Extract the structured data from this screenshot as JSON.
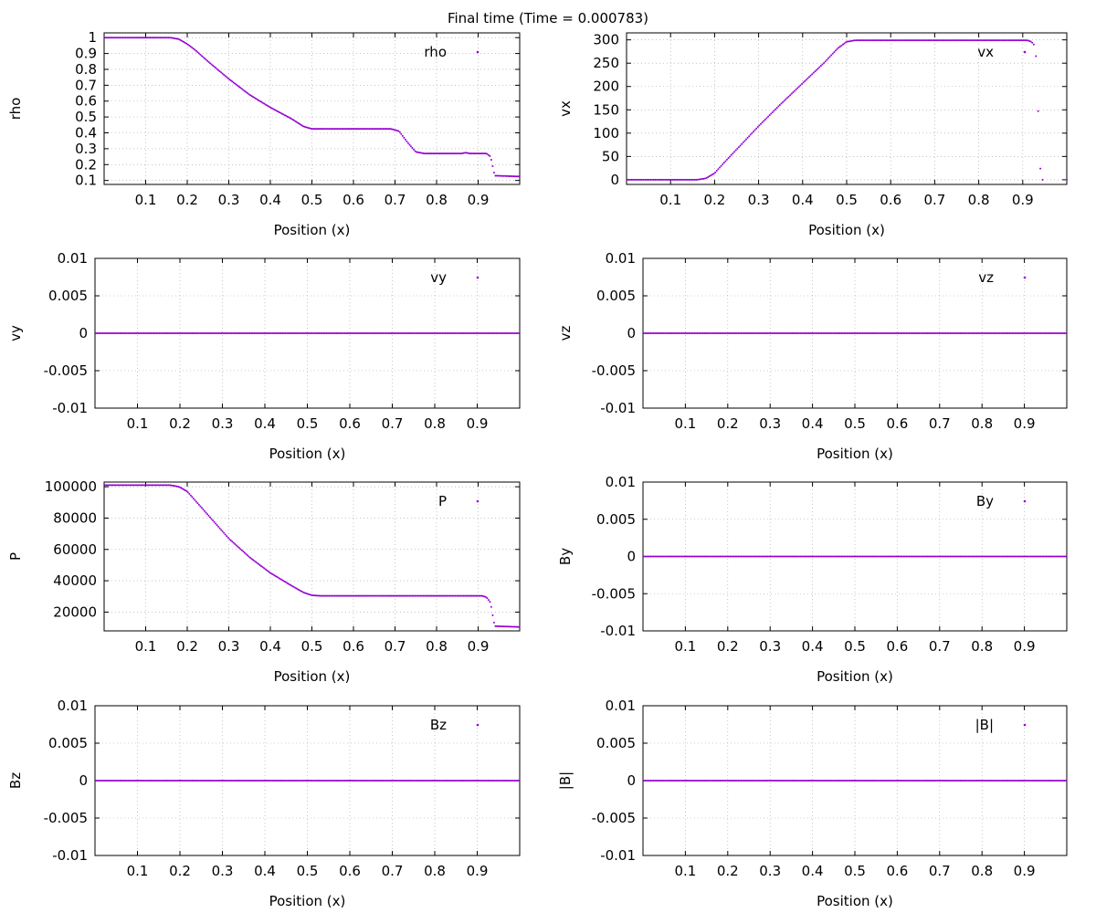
{
  "figure": {
    "title": "Final time (Time = 0.000783)",
    "marker_color": "#9400d3",
    "grid_color": "#a0a0a0",
    "axis_color": "#000000"
  },
  "chart_data": [
    {
      "type": "scatter",
      "title": "",
      "xlabel": "Position (x)",
      "ylabel": "rho",
      "legend": "rho",
      "legend_placement": "top-right",
      "grid": true,
      "xlim": [
        0,
        1
      ],
      "ylim": [
        0.075,
        1.03
      ],
      "xticks": [
        0.1,
        0.2,
        0.3,
        0.4,
        0.5,
        0.6,
        0.7,
        0.8,
        0.9
      ],
      "xtick_labels": [
        "0.1",
        "0.2",
        "0.3",
        "0.4",
        "0.5",
        "0.6",
        "0.7",
        "0.8",
        "0.9"
      ],
      "yticks": [
        0.1,
        0.2,
        0.3,
        0.4,
        0.5,
        0.6,
        0.7,
        0.8,
        0.9,
        1
      ],
      "ytick_labels": [
        "0.1",
        "0.2",
        "0.3",
        "0.4",
        "0.5",
        "0.6",
        "0.7",
        "0.8",
        "0.9",
        "1"
      ],
      "series": [
        {
          "name": "rho",
          "profile": [
            [
              0,
              1
            ],
            [
              0.16,
              1
            ],
            [
              0.18,
              0.99
            ],
            [
              0.2,
              0.96
            ],
            [
              0.22,
              0.92
            ],
            [
              0.25,
              0.85
            ],
            [
              0.3,
              0.74
            ],
            [
              0.35,
              0.64
            ],
            [
              0.4,
              0.56
            ],
            [
              0.45,
              0.49
            ],
            [
              0.48,
              0.44
            ],
            [
              0.5,
              0.425
            ],
            [
              0.55,
              0.425
            ],
            [
              0.69,
              0.425
            ],
            [
              0.71,
              0.41
            ],
            [
              0.73,
              0.34
            ],
            [
              0.75,
              0.28
            ],
            [
              0.77,
              0.27
            ],
            [
              0.86,
              0.27
            ],
            [
              0.87,
              0.275
            ],
            [
              0.88,
              0.27
            ],
            [
              0.92,
              0.27
            ],
            [
              0.93,
              0.25
            ],
            [
              0.935,
              0.19
            ],
            [
              0.94,
              0.13
            ],
            [
              1,
              0.125
            ]
          ]
        }
      ]
    },
    {
      "type": "scatter",
      "title": "",
      "xlabel": "Position (x)",
      "ylabel": "vx",
      "legend": "vx",
      "legend_placement": "top-right",
      "grid": true,
      "xlim": [
        0,
        1
      ],
      "ylim": [
        -10,
        315
      ],
      "xticks": [
        0.1,
        0.2,
        0.3,
        0.4,
        0.5,
        0.6,
        0.7,
        0.8,
        0.9
      ],
      "xtick_labels": [
        "0.1",
        "0.2",
        "0.3",
        "0.4",
        "0.5",
        "0.6",
        "0.7",
        "0.8",
        "0.9"
      ],
      "yticks": [
        0,
        50,
        100,
        150,
        200,
        250,
        300
      ],
      "ytick_labels": [
        "0",
        "50",
        "100",
        "150",
        "200",
        "250",
        "300"
      ],
      "series": [
        {
          "name": "vx",
          "profile": [
            [
              0,
              0
            ],
            [
              0.16,
              0
            ],
            [
              0.18,
              3
            ],
            [
              0.2,
              14
            ],
            [
              0.22,
              35
            ],
            [
              0.25,
              65
            ],
            [
              0.3,
              115
            ],
            [
              0.35,
              162
            ],
            [
              0.4,
              207
            ],
            [
              0.45,
              252
            ],
            [
              0.48,
              282
            ],
            [
              0.5,
              296
            ],
            [
              0.52,
              299
            ],
            [
              0.91,
              299
            ],
            [
              0.92,
              296
            ],
            [
              0.925,
              290
            ]
          ],
          "extra_points": [
            [
              0.93,
              265
            ],
            [
              0.935,
              147
            ],
            [
              0.94,
              24
            ],
            [
              0.945,
              0
            ],
            [
              1,
              0
            ]
          ]
        }
      ]
    },
    {
      "type": "scatter",
      "title": "",
      "xlabel": "Position (x)",
      "ylabel": "vy",
      "legend": "vy",
      "legend_placement": "top-right",
      "grid": true,
      "xlim": [
        0,
        1
      ],
      "ylim": [
        -0.01,
        0.01
      ],
      "xticks": [
        0.1,
        0.2,
        0.3,
        0.4,
        0.5,
        0.6,
        0.7,
        0.8,
        0.9
      ],
      "xtick_labels": [
        "0.1",
        "0.2",
        "0.3",
        "0.4",
        "0.5",
        "0.6",
        "0.7",
        "0.8",
        "0.9"
      ],
      "yticks": [
        -0.01,
        -0.005,
        0,
        0.005,
        0.01
      ],
      "ytick_labels": [
        "-0.01",
        "-0.005",
        "0",
        "0.005",
        "0.01"
      ],
      "series": [
        {
          "name": "vy",
          "profile": [
            [
              0,
              0
            ],
            [
              1,
              0
            ]
          ]
        }
      ]
    },
    {
      "type": "scatter",
      "title": "",
      "xlabel": "Position (x)",
      "ylabel": "vz",
      "legend": "vz",
      "legend_placement": "top-right",
      "grid": true,
      "xlim": [
        0,
        1
      ],
      "ylim": [
        -0.01,
        0.01
      ],
      "xticks": [
        0.1,
        0.2,
        0.3,
        0.4,
        0.5,
        0.6,
        0.7,
        0.8,
        0.9
      ],
      "xtick_labels": [
        "0.1",
        "0.2",
        "0.3",
        "0.4",
        "0.5",
        "0.6",
        "0.7",
        "0.8",
        "0.9"
      ],
      "yticks": [
        -0.01,
        -0.005,
        0,
        0.005,
        0.01
      ],
      "ytick_labels": [
        "-0.01",
        "-0.005",
        "0",
        "0.005",
        "0.01"
      ],
      "series": [
        {
          "name": "vz",
          "profile": [
            [
              0,
              0
            ],
            [
              1,
              0
            ]
          ]
        }
      ]
    },
    {
      "type": "scatter",
      "title": "",
      "xlabel": "Position (x)",
      "ylabel": "P",
      "legend": "P",
      "legend_placement": "top-right",
      "grid": true,
      "xlim": [
        0,
        1
      ],
      "ylim": [
        8000,
        103000
      ],
      "xticks": [
        0.1,
        0.2,
        0.3,
        0.4,
        0.5,
        0.6,
        0.7,
        0.8,
        0.9
      ],
      "xtick_labels": [
        "0.1",
        "0.2",
        "0.3",
        "0.4",
        "0.5",
        "0.6",
        "0.7",
        "0.8",
        "0.9"
      ],
      "yticks": [
        20000,
        40000,
        60000,
        80000,
        100000
      ],
      "ytick_labels": [
        "20000",
        "40000",
        "60000",
        "80000",
        "100000"
      ],
      "series": [
        {
          "name": "P",
          "profile": [
            [
              0,
              101000
            ],
            [
              0.16,
              101000
            ],
            [
              0.18,
              100000
            ],
            [
              0.2,
              97000
            ],
            [
              0.22,
              91000
            ],
            [
              0.25,
              82000
            ],
            [
              0.3,
              67000
            ],
            [
              0.35,
              55000
            ],
            [
              0.4,
              45000
            ],
            [
              0.45,
              37000
            ],
            [
              0.48,
              32500
            ],
            [
              0.5,
              30700
            ],
            [
              0.52,
              30400
            ],
            [
              0.91,
              30400
            ],
            [
              0.92,
              29500
            ],
            [
              0.93,
              26000
            ],
            [
              0.935,
              18000
            ],
            [
              0.94,
              11000
            ],
            [
              1,
              10500
            ]
          ]
        }
      ]
    },
    {
      "type": "scatter",
      "title": "",
      "xlabel": "Position (x)",
      "ylabel": "By",
      "legend": "By",
      "legend_placement": "top-right",
      "grid": true,
      "xlim": [
        0,
        1
      ],
      "ylim": [
        -0.01,
        0.01
      ],
      "xticks": [
        0.1,
        0.2,
        0.3,
        0.4,
        0.5,
        0.6,
        0.7,
        0.8,
        0.9
      ],
      "xtick_labels": [
        "0.1",
        "0.2",
        "0.3",
        "0.4",
        "0.5",
        "0.6",
        "0.7",
        "0.8",
        "0.9"
      ],
      "yticks": [
        -0.01,
        -0.005,
        0,
        0.005,
        0.01
      ],
      "ytick_labels": [
        "-0.01",
        "-0.005",
        "0",
        "0.005",
        "0.01"
      ],
      "series": [
        {
          "name": "By",
          "profile": [
            [
              0,
              0
            ],
            [
              1,
              0
            ]
          ]
        }
      ]
    },
    {
      "type": "scatter",
      "title": "",
      "xlabel": "Position (x)",
      "ylabel": "Bz",
      "legend": "Bz",
      "legend_placement": "top-right",
      "grid": true,
      "xlim": [
        0,
        1
      ],
      "ylim": [
        -0.01,
        0.01
      ],
      "xticks": [
        0.1,
        0.2,
        0.3,
        0.4,
        0.5,
        0.6,
        0.7,
        0.8,
        0.9
      ],
      "xtick_labels": [
        "0.1",
        "0.2",
        "0.3",
        "0.4",
        "0.5",
        "0.6",
        "0.7",
        "0.8",
        "0.9"
      ],
      "yticks": [
        -0.01,
        -0.005,
        0,
        0.005,
        0.01
      ],
      "ytick_labels": [
        "-0.01",
        "-0.005",
        "0",
        "0.005",
        "0.01"
      ],
      "series": [
        {
          "name": "Bz",
          "profile": [
            [
              0,
              0
            ],
            [
              1,
              0
            ]
          ]
        }
      ]
    },
    {
      "type": "scatter",
      "title": "",
      "xlabel": "Position (x)",
      "ylabel": "|B|",
      "legend": "|B|",
      "legend_placement": "top-right",
      "grid": true,
      "xlim": [
        0,
        1
      ],
      "ylim": [
        -0.01,
        0.01
      ],
      "xticks": [
        0.1,
        0.2,
        0.3,
        0.4,
        0.5,
        0.6,
        0.7,
        0.8,
        0.9
      ],
      "xtick_labels": [
        "0.1",
        "0.2",
        "0.3",
        "0.4",
        "0.5",
        "0.6",
        "0.7",
        "0.8",
        "0.9"
      ],
      "yticks": [
        -0.01,
        -0.005,
        0,
        0.005,
        0.01
      ],
      "ytick_labels": [
        "-0.01",
        "-0.005",
        "0",
        "0.005",
        "0.01"
      ],
      "series": [
        {
          "name": "|B|",
          "profile": [
            [
              0,
              0
            ],
            [
              1,
              0
            ]
          ]
        }
      ]
    }
  ]
}
